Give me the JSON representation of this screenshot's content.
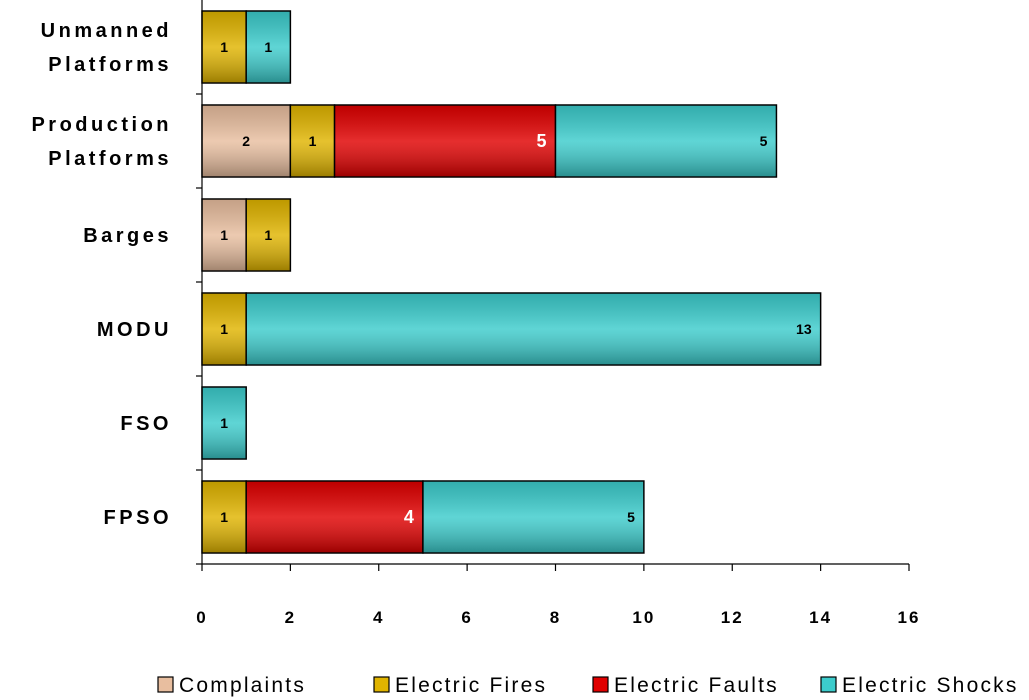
{
  "chart_data": {
    "type": "bar",
    "orientation": "horizontal",
    "stacked": true,
    "categories": [
      [
        "Unmanned",
        "Platforms"
      ],
      [
        "Production",
        "Platforms"
      ],
      [
        "Barges"
      ],
      [
        "MODU"
      ],
      [
        "FSO"
      ],
      [
        "FPSO"
      ]
    ],
    "series": [
      {
        "name": "Complaints",
        "color": "#E8BE9F",
        "label_color": "#000000",
        "values": [
          0,
          2,
          1,
          0,
          0,
          0
        ]
      },
      {
        "name": "Electric Fires",
        "color": "#E0B400",
        "label_color": "#000000",
        "values": [
          1,
          1,
          1,
          1,
          0,
          1
        ]
      },
      {
        "name": "Electric Faults",
        "color": "#E00000",
        "label_color": "#ffffff",
        "values": [
          0,
          5,
          0,
          0,
          0,
          4
        ]
      },
      {
        "name": "Electric Shocks",
        "color": "#3CCCCC",
        "label_color": "#000000",
        "values": [
          1,
          5,
          0,
          13,
          1,
          5
        ]
      }
    ],
    "xlim": [
      0,
      16
    ],
    "xticks": [
      "0",
      "2",
      "4",
      "6",
      "8",
      "10",
      "12",
      "14",
      "16"
    ],
    "title": "",
    "xlabel": "",
    "ylabel": "",
    "grid": false,
    "legend": "bottom"
  }
}
